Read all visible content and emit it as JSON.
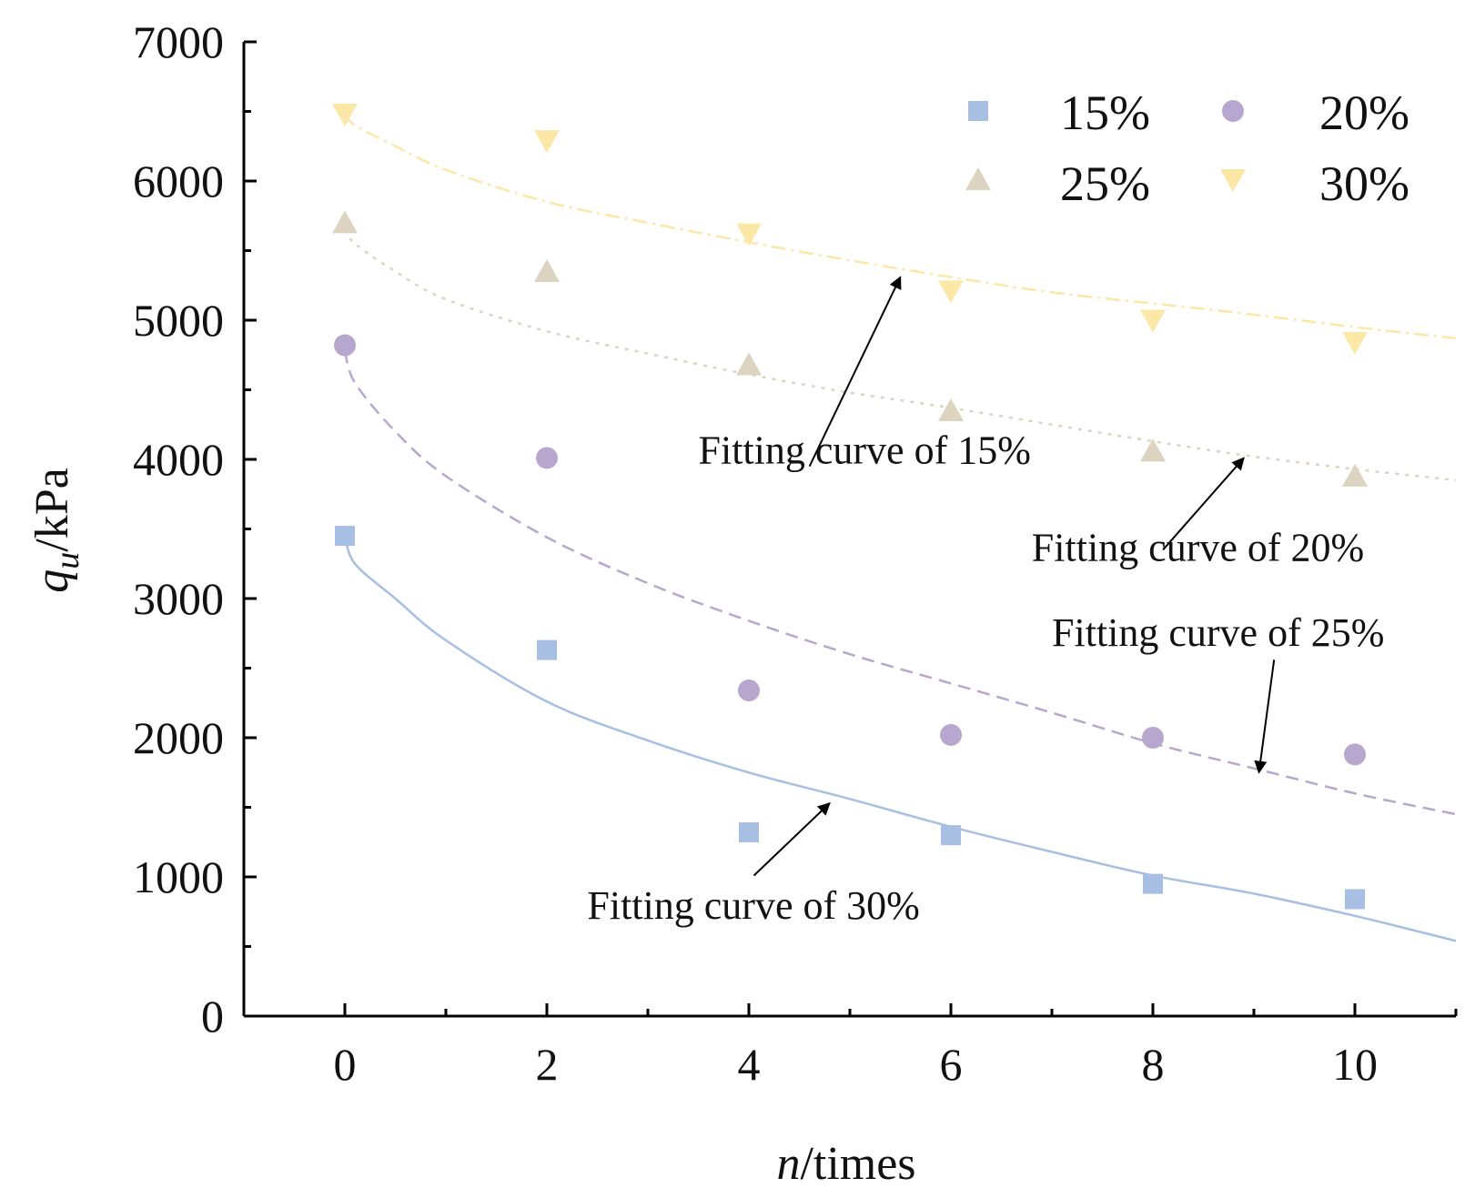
{
  "chart_data": {
    "type": "scatter",
    "title": "",
    "xlabel_italic": "n",
    "xlabel_rest": "/times",
    "ylabel_italic": "q",
    "ylabel_sub": "u",
    "ylabel_rest": "/kPa",
    "xlim": [
      -1,
      11
    ],
    "ylim": [
      0,
      7000
    ],
    "x_ticks": [
      0,
      2,
      4,
      6,
      8,
      10
    ],
    "x_tick_labels": [
      "0",
      "2",
      "4",
      "6",
      "8",
      "10"
    ],
    "y_ticks": [
      0,
      1000,
      2000,
      3000,
      4000,
      5000,
      6000,
      7000
    ],
    "y_tick_labels": [
      "0",
      "1000",
      "2000",
      "3000",
      "4000",
      "5000",
      "6000",
      "7000"
    ],
    "grid": false,
    "legend_position": "top-right",
    "series": [
      {
        "name": "15%",
        "marker": "square",
        "color": "#a7bfe3",
        "x": [
          0,
          2,
          4,
          6,
          8,
          10
        ],
        "y": [
          3450,
          2630,
          1320,
          1300,
          950,
          840
        ],
        "fit": {
          "x": [
            0,
            0.1,
            0.5,
            1,
            2,
            3,
            4,
            5,
            6,
            7,
            8,
            9,
            10,
            11
          ],
          "y": [
            3450,
            3250,
            3000,
            2700,
            2260,
            1980,
            1750,
            1560,
            1360,
            1180,
            1010,
            880,
            720,
            540
          ],
          "style": "solid"
        }
      },
      {
        "name": "20%",
        "marker": "circle",
        "color": "#b7a7cf",
        "x": [
          0,
          2,
          4,
          6,
          8,
          10
        ],
        "y": [
          4820,
          4010,
          2340,
          2020,
          2000,
          1880
        ],
        "fit": {
          "x": [
            0,
            0.1,
            0.5,
            1,
            2,
            3,
            4,
            5,
            6,
            7,
            8,
            9,
            10,
            11
          ],
          "y": [
            4780,
            4550,
            4200,
            3880,
            3440,
            3110,
            2840,
            2600,
            2390,
            2180,
            1960,
            1780,
            1600,
            1450
          ],
          "style": "dashed"
        }
      },
      {
        "name": "25%",
        "marker": "triangle-up",
        "color": "#dcd4c0",
        "x": [
          0,
          2,
          4,
          6,
          8,
          10
        ],
        "y": [
          5690,
          5340,
          4670,
          4340,
          4050,
          3870
        ],
        "fit": {
          "x": [
            0,
            0.1,
            0.5,
            1,
            2,
            3,
            4,
            5,
            6,
            7,
            8,
            9,
            10,
            11
          ],
          "y": [
            5650,
            5550,
            5350,
            5150,
            4920,
            4760,
            4610,
            4480,
            4370,
            4250,
            4130,
            4020,
            3930,
            3850
          ],
          "style": "dotted"
        }
      },
      {
        "name": "30%",
        "marker": "triangle-down",
        "color": "#fbe7a6",
        "x": [
          0,
          2,
          4,
          6,
          8,
          10
        ],
        "y": [
          6490,
          6300,
          5630,
          5220,
          5010,
          4850
        ],
        "fit": {
          "x": [
            0,
            0.1,
            0.5,
            1,
            2,
            3,
            4,
            5,
            6,
            7,
            8,
            9,
            10,
            11
          ],
          "y": [
            6480,
            6400,
            6250,
            6080,
            5850,
            5700,
            5560,
            5430,
            5310,
            5200,
            5120,
            5040,
            4950,
            4870
          ],
          "style": "dash-dot"
        }
      }
    ],
    "annotations": [
      {
        "text": "Fitting curve of 15%",
        "text_x": 3.5,
        "text_y": 3970,
        "arrow_from": [
          4.6,
          3950
        ],
        "arrow_to": [
          5.5,
          5310
        ]
      },
      {
        "text": "Fitting curve of 20%",
        "text_x": 6.8,
        "text_y": 3270,
        "arrow_from": [
          8.1,
          3350
        ],
        "arrow_to": [
          8.9,
          4010
        ]
      },
      {
        "text": "Fitting curve of 25%",
        "text_x": 7.0,
        "text_y": 2660,
        "arrow_from": [
          9.2,
          2560
        ],
        "arrow_to": [
          9.05,
          1750
        ]
      },
      {
        "text": "Fitting curve of 30%",
        "text_x": 2.4,
        "text_y": 700,
        "arrow_from": [
          4.05,
          1010
        ],
        "arrow_to": [
          4.8,
          1530
        ]
      }
    ]
  }
}
